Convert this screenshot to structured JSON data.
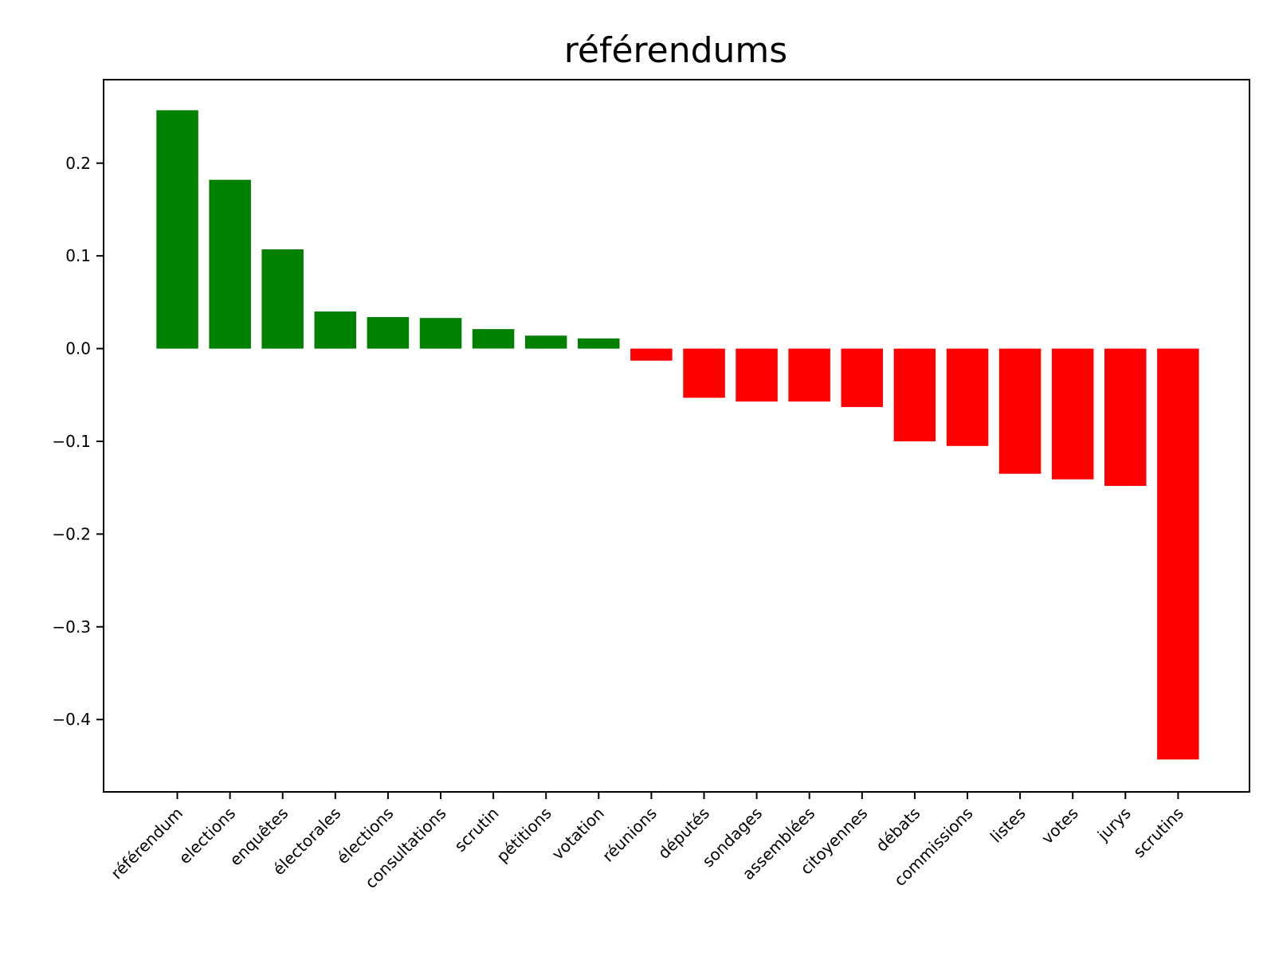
{
  "chart_data": {
    "type": "bar",
    "title": "référendums",
    "xlabel": "",
    "ylabel": "",
    "ylim": [
      -0.478,
      0.29
    ],
    "yticks": [
      0.2,
      0.1,
      0.0,
      -0.1,
      -0.2,
      -0.3,
      -0.4
    ],
    "ytick_labels": [
      "0.2",
      "0.1",
      "0.0",
      "−0.1",
      "−0.2",
      "−0.3",
      "−0.4"
    ],
    "positive_color": "#008000",
    "negative_color": "#ff0000",
    "categories": [
      "référendum",
      "elections",
      "enquêtes",
      "électorales",
      "élections",
      "consultations",
      "scrutin",
      "pétitions",
      "votation",
      "réunions",
      "députés",
      "sondages",
      "assemblées",
      "citoyennes",
      "débats",
      "commissions",
      "listes",
      "votes",
      "jurys",
      "scrutins"
    ],
    "values": [
      0.257,
      0.182,
      0.107,
      0.04,
      0.034,
      0.033,
      0.021,
      0.014,
      0.011,
      -0.013,
      -0.053,
      -0.057,
      -0.057,
      -0.063,
      -0.1,
      -0.105,
      -0.135,
      -0.141,
      -0.148,
      -0.443
    ]
  }
}
